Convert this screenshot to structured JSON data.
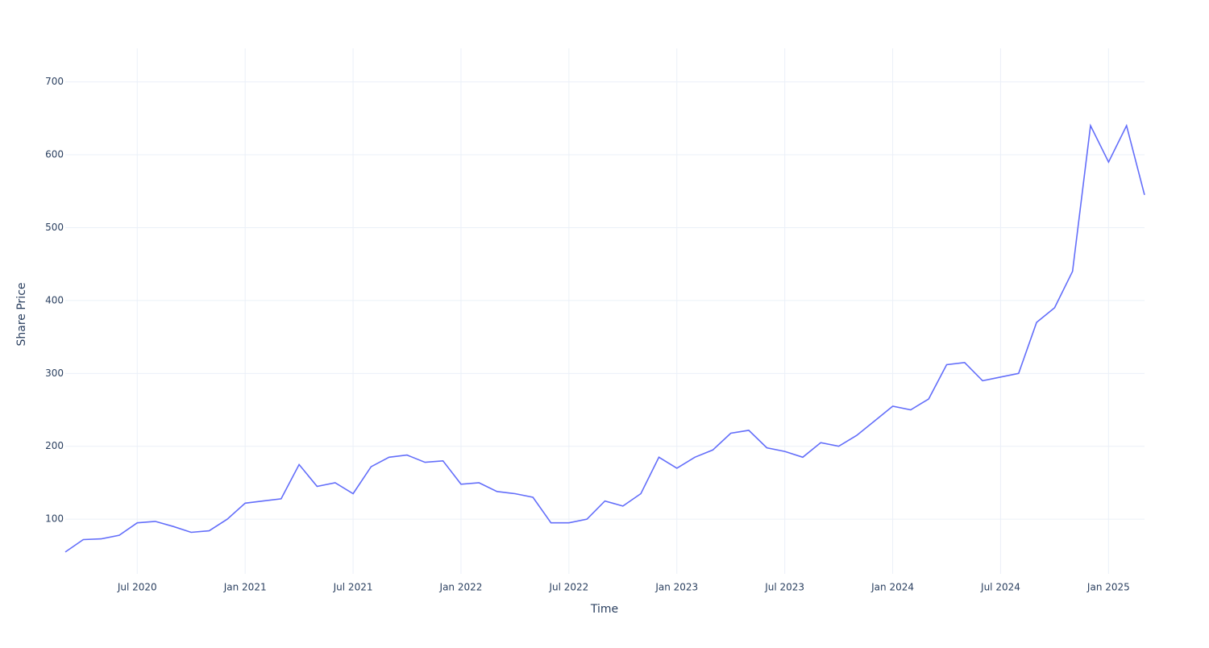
{
  "chart_data": {
    "type": "line",
    "x_label": "Time",
    "y_label": "Share Price",
    "x": [
      "2020-03",
      "2020-04",
      "2020-05",
      "2020-06",
      "2020-07",
      "2020-08",
      "2020-09",
      "2020-10",
      "2020-11",
      "2020-12",
      "2021-01",
      "2021-02",
      "2021-03",
      "2021-04",
      "2021-05",
      "2021-06",
      "2021-07",
      "2021-08",
      "2021-09",
      "2021-10",
      "2021-11",
      "2021-12",
      "2022-01",
      "2022-02",
      "2022-03",
      "2022-04",
      "2022-05",
      "2022-06",
      "2022-07",
      "2022-08",
      "2022-09",
      "2022-10",
      "2022-11",
      "2022-12",
      "2023-01",
      "2023-02",
      "2023-03",
      "2023-04",
      "2023-05",
      "2023-06",
      "2023-07",
      "2023-08",
      "2023-09",
      "2023-10",
      "2023-11",
      "2023-12",
      "2024-01",
      "2024-02",
      "2024-03",
      "2024-04",
      "2024-05",
      "2024-06",
      "2024-07",
      "2024-08",
      "2024-09",
      "2024-10",
      "2024-11",
      "2024-12",
      "2025-01",
      "2025-02",
      "2025-03"
    ],
    "series": [
      {
        "name": "Share Price",
        "color": "#636efa",
        "values": [
          55,
          72,
          73,
          78,
          95,
          97,
          90,
          82,
          84,
          100,
          122,
          125,
          128,
          175,
          145,
          150,
          135,
          172,
          185,
          188,
          178,
          180,
          148,
          150,
          138,
          135,
          130,
          95,
          95,
          100,
          125,
          118,
          135,
          185,
          170,
          185,
          195,
          218,
          222,
          198,
          193,
          185,
          205,
          200,
          215,
          235,
          255,
          250,
          265,
          312,
          315,
          290,
          295,
          300,
          370,
          390,
          440,
          640,
          590,
          640,
          545
        ]
      }
    ],
    "xlim": [
      "2020-03",
      "2025-03"
    ],
    "xticks": [
      {
        "value": "2020-07",
        "label": "Jul 2020"
      },
      {
        "value": "2021-01",
        "label": "Jan 2021"
      },
      {
        "value": "2021-07",
        "label": "Jul 2021"
      },
      {
        "value": "2022-01",
        "label": "Jan 2022"
      },
      {
        "value": "2022-07",
        "label": "Jul 2022"
      },
      {
        "value": "2023-01",
        "label": "Jan 2023"
      },
      {
        "value": "2023-07",
        "label": "Jul 2023"
      },
      {
        "value": "2024-01",
        "label": "Jan 2024"
      },
      {
        "value": "2024-07",
        "label": "Jul 2024"
      },
      {
        "value": "2025-01",
        "label": "Jan 2025"
      }
    ],
    "ylim": [
      25,
      746
    ],
    "yticks": [
      100,
      200,
      300,
      400,
      500,
      600,
      700
    ],
    "grid": true
  }
}
